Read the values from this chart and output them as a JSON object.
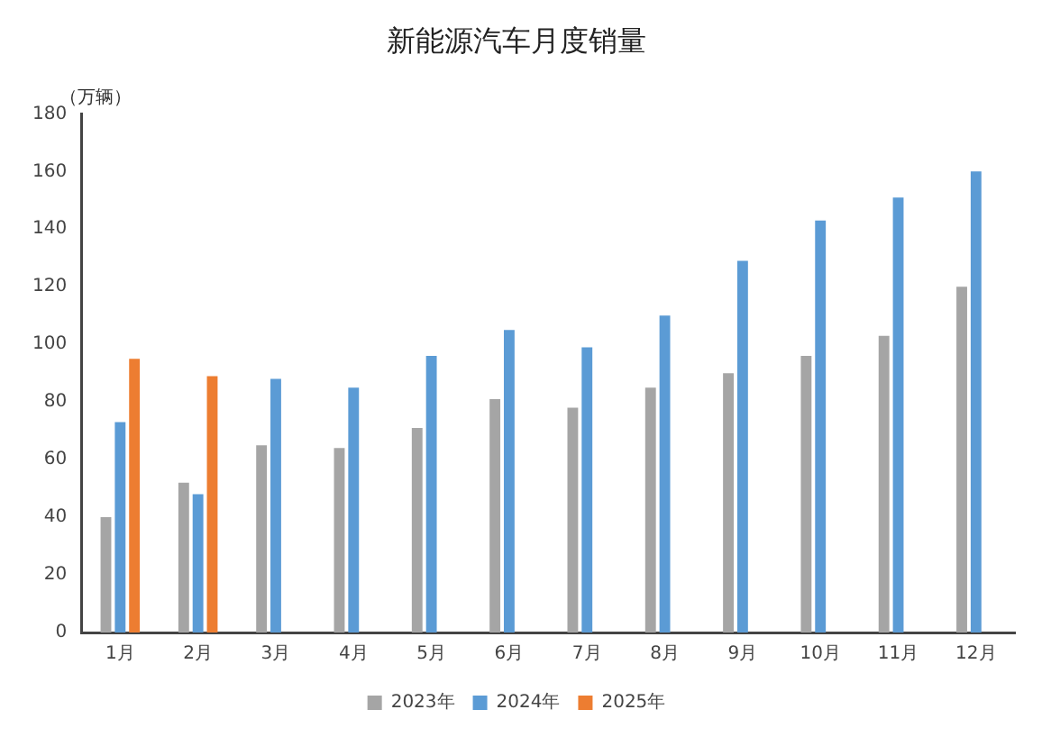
{
  "chart_data": {
    "type": "bar",
    "title": "新能源汽车月度销量",
    "ylabel": "（万辆）",
    "categories": [
      "1月",
      "2月",
      "3月",
      "4月",
      "5月",
      "6月",
      "7月",
      "8月",
      "9月",
      "10月",
      "11月",
      "12月"
    ],
    "series": [
      {
        "name": "2023年",
        "color": "#a5a5a5",
        "values": [
          40,
          52,
          65,
          64,
          71,
          81,
          78,
          85,
          90,
          96,
          103,
          120
        ]
      },
      {
        "name": "2024年",
        "color": "#5b9bd5",
        "values": [
          73,
          48,
          88,
          85,
          96,
          105,
          99,
          110,
          129,
          143,
          151,
          160
        ]
      },
      {
        "name": "2025年",
        "color": "#ed7d31",
        "values": [
          95,
          89,
          null,
          null,
          null,
          null,
          null,
          null,
          null,
          null,
          null,
          null
        ]
      }
    ],
    "ylim": [
      0,
      180
    ],
    "yticks": [
      0,
      20,
      40,
      60,
      80,
      100,
      120,
      140,
      160,
      180
    ],
    "grid": false,
    "legend": "bottom"
  }
}
